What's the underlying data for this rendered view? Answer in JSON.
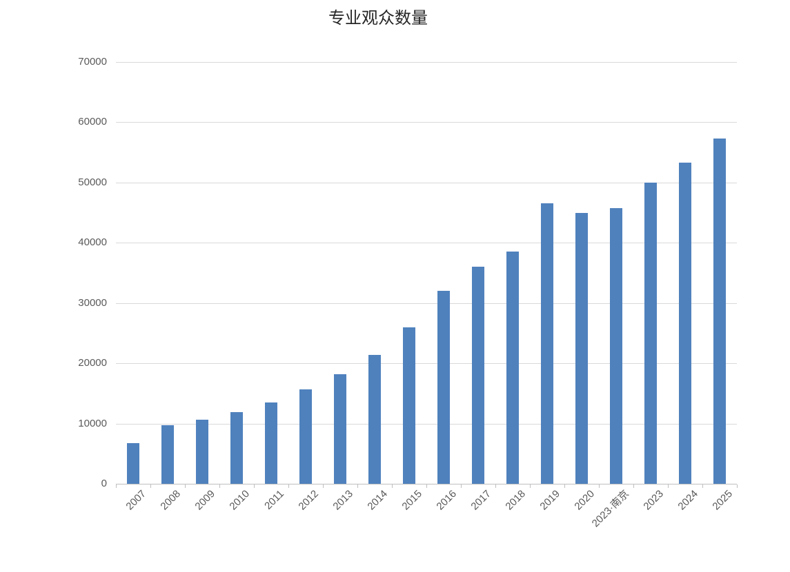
{
  "chart_data": {
    "type": "bar",
    "title": "专业观众数量",
    "categories": [
      "2007",
      "2008",
      "2009",
      "2010",
      "2011",
      "2012",
      "2013",
      "2014",
      "2015",
      "2016",
      "2017",
      "2018",
      "2019",
      "2020",
      "2023·南京",
      "2023",
      "2024",
      "2025"
    ],
    "values": [
      6800,
      9700,
      10600,
      11900,
      13500,
      15700,
      18200,
      21400,
      26000,
      32000,
      36000,
      38500,
      46500,
      45000,
      45700,
      50000,
      53300,
      57300
    ],
    "xlabel": "",
    "ylabel": "",
    "ylim": [
      0,
      70000
    ],
    "ytick_interval": 10000,
    "ytick_labels": [
      "0",
      "10000",
      "20000",
      "30000",
      "40000",
      "50000",
      "60000",
      "70000"
    ],
    "legend": "none",
    "grid": "horizontal",
    "colors": {
      "bar": "#4f81bd",
      "gridline": "#d9d9d9",
      "axis_line": "#bfbfbf",
      "tick_label": "#595959",
      "title": "#262626",
      "background": "#ffffff"
    }
  }
}
